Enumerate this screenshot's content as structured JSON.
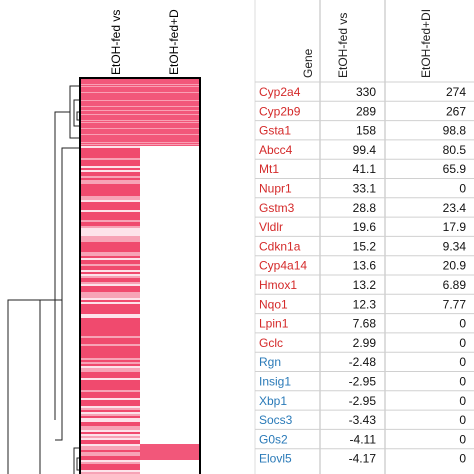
{
  "heatmap": {
    "columns": [
      "EtOH-fed vs",
      "EtOH-fed+D"
    ]
  },
  "table": {
    "header": [
      "Gene",
      "EtOH-fed vs",
      "EtOH-fed+DI"
    ],
    "rows": [
      [
        "Cyp2a4",
        330,
        274
      ],
      [
        "Cyp2b9",
        289,
        267
      ],
      [
        "Gsta1",
        158,
        98.8
      ],
      [
        "Abcc4",
        99.4,
        80.5
      ],
      [
        "Mt1",
        41.1,
        65.9
      ],
      [
        "Nupr1",
        33.1,
        0
      ],
      [
        "Gstm3",
        28.8,
        23.4
      ],
      [
        "Vldlr",
        19.6,
        17.9
      ],
      [
        "Cdkn1a",
        15.2,
        9.34
      ],
      [
        "Cyp4a14",
        13.6,
        20.9
      ],
      [
        "Hmox1",
        13.2,
        6.89
      ],
      [
        "Nqo1",
        12.3,
        7.77
      ],
      [
        "Lpin1",
        7.68,
        0
      ],
      [
        "Gclc",
        2.99,
        0
      ],
      [
        "Rgn",
        -2.48,
        0
      ],
      [
        "Insig1",
        -2.95,
        0
      ],
      [
        "Xbp1",
        -2.95,
        0
      ],
      [
        "Socs3",
        -3.43,
        0
      ],
      [
        "G0s2",
        -4.11,
        0
      ],
      [
        "Elovl5",
        -4.17,
        0
      ]
    ]
  }
}
